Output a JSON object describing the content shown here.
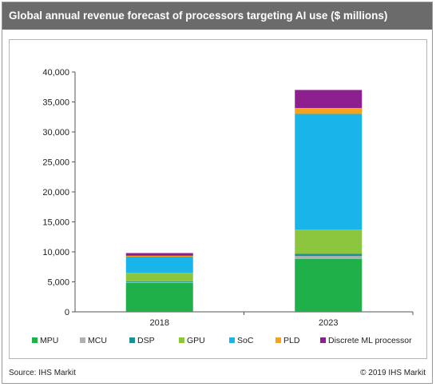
{
  "title": "Global annual revenue forecast of processors targeting AI use ($ millions)",
  "footer": {
    "source": "Source: IHS Markit",
    "copyright": "© 2019 IHS Markit"
  },
  "chart_data": {
    "type": "bar",
    "stacked": true,
    "title": "Global annual revenue forecast of processors targeting AI use ($ millions)",
    "categories": [
      "2018",
      "2023"
    ],
    "ylim": [
      0,
      40000
    ],
    "yticks": [
      "0",
      "5,000",
      "10,000",
      "15,000",
      "20,000",
      "25,000",
      "30,000",
      "35,000",
      "40,000"
    ],
    "ytick_values": [
      0,
      5000,
      10000,
      15000,
      20000,
      25000,
      30000,
      35000,
      40000
    ],
    "grid": false,
    "legend_position": "bottom",
    "series": [
      {
        "name": "MPU",
        "color": "#1fb04a",
        "values": [
          4800,
          8800
        ]
      },
      {
        "name": "MCU",
        "color": "#b0b0b0",
        "values": [
          150,
          500
        ]
      },
      {
        "name": "DSP",
        "color": "#1f8f8f",
        "values": [
          150,
          400
        ]
      },
      {
        "name": "GPU",
        "color": "#8cc63f",
        "values": [
          1400,
          4000
        ]
      },
      {
        "name": "SoC",
        "color": "#19b4ea",
        "values": [
          2700,
          19300
        ]
      },
      {
        "name": "PLD",
        "color": "#f7a21b",
        "values": [
          150,
          1000
        ]
      },
      {
        "name": "Discrete ML processor",
        "color": "#8e1f8e",
        "values": [
          450,
          3000
        ]
      }
    ]
  }
}
